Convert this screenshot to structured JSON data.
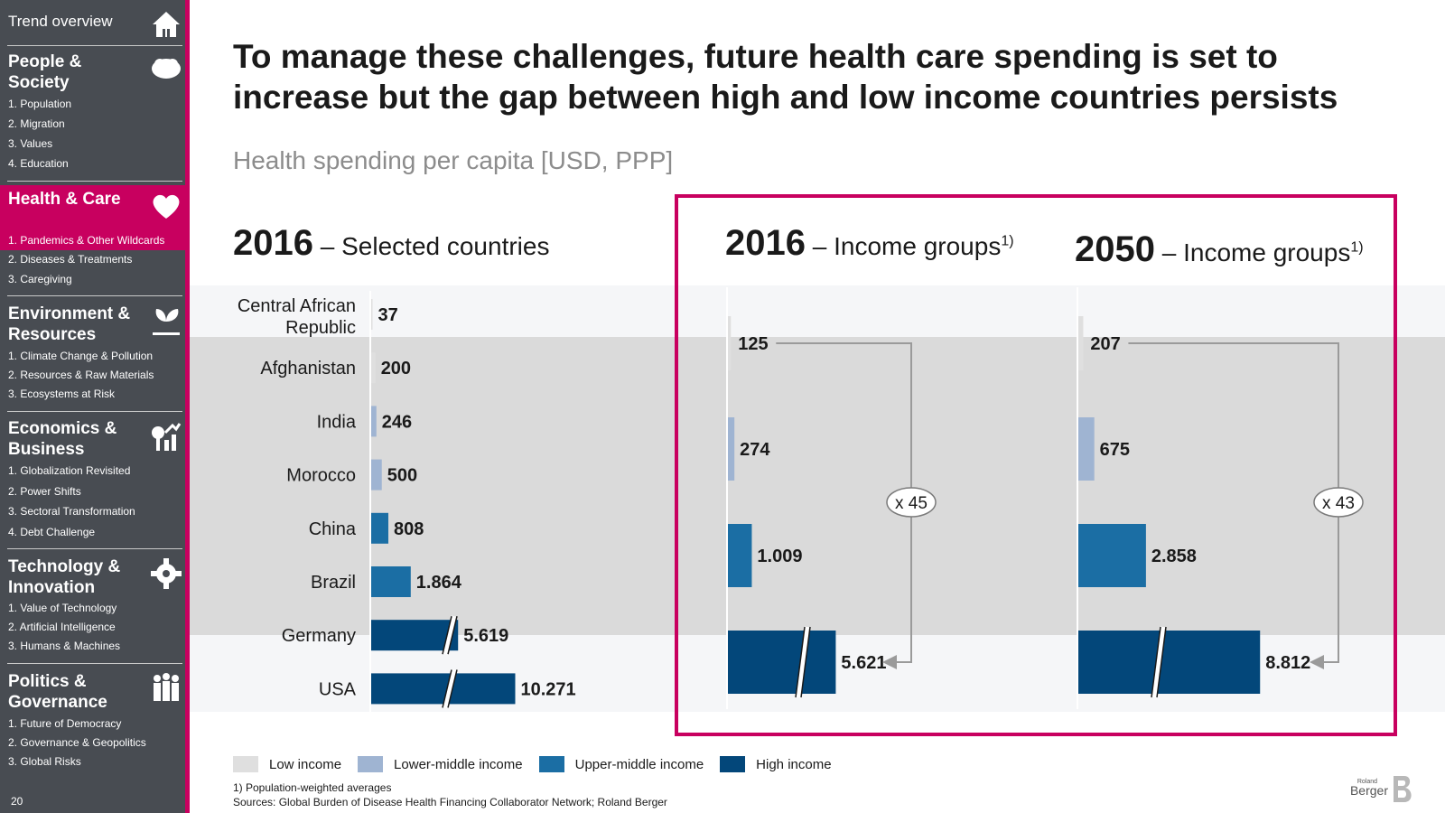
{
  "sidebar": {
    "top_label": "Trend overview",
    "page_number": "20",
    "sections": [
      {
        "title": "People & Society",
        "items": [
          "1. Population",
          "2. Migration",
          "3. Values",
          "4. Education"
        ],
        "active": false
      },
      {
        "title": "Health & Care",
        "items": [
          "1. Pandemics & Other Wildcards",
          "2. Diseases & Treatments",
          "3. Caregiving"
        ],
        "active": true
      },
      {
        "title": "Environment & Resources",
        "items": [
          "1. Climate Change & Pollution",
          "2. Resources & Raw Materials",
          "3. Ecosystems at Risk"
        ],
        "active": false
      },
      {
        "title": "Economics & Business",
        "items": [
          "1. Globalization Revisited",
          "2. Power Shifts",
          "3. Sectoral Transformation",
          "4. Debt Challenge"
        ],
        "active": false
      },
      {
        "title": "Technology & Innovation",
        "items": [
          "1. Value of Technology",
          "2. Artificial Intelligence",
          "3. Humans & Machines"
        ],
        "active": false
      },
      {
        "title": "Politics & Governance",
        "items": [
          "1. Future of Democracy",
          "2. Governance & Geopolitics",
          "3. Global Risks"
        ],
        "active": false
      }
    ],
    "icons": [
      "home-icon",
      "people-icon",
      "heart-icon",
      "leaf-icon",
      "business-icon",
      "gear-icon",
      "politics-icon"
    ]
  },
  "headline": "To manage these challenges, future health care spending is set to increase but the gap between high and low income countries persists",
  "subtitle": "Health spending per capita [USD, PPP]",
  "panels": [
    {
      "year": "2016",
      "label": "– Selected countries",
      "footnote_mark": ""
    },
    {
      "year": "2016",
      "label": "– Income groups",
      "footnote_mark": "1)"
    },
    {
      "year": "2050",
      "label": "– Income groups",
      "footnote_mark": "1)"
    }
  ],
  "colors": {
    "low": "#dfdfdf",
    "lower_middle": "#9fb4d2",
    "upper_middle": "#1b6ea4",
    "high": "#03477a",
    "accent": "#c8005f"
  },
  "chart_data": [
    {
      "type": "bar",
      "title": "2016 – Selected countries",
      "categories": [
        "Central African Republic",
        "Afghanistan",
        "India",
        "Morocco",
        "China",
        "Brazil",
        "Germany",
        "USA"
      ],
      "values": [
        37,
        200,
        246,
        500,
        808,
        1864,
        5619,
        10271
      ],
      "value_labels": [
        "37",
        "200",
        "246",
        "500",
        "808",
        "1.864",
        "5.619",
        "10.271"
      ],
      "income_group": [
        "low",
        "low",
        "lower_middle",
        "lower_middle",
        "upper_middle",
        "upper_middle",
        "high",
        "high"
      ],
      "axis_break": [
        false,
        false,
        false,
        false,
        false,
        false,
        true,
        true
      ]
    },
    {
      "type": "bar",
      "title": "2016 – Income groups",
      "categories": [
        "Low income",
        "Lower-middle income",
        "Upper-middle income",
        "High income"
      ],
      "values": [
        125,
        274,
        1009,
        5621
      ],
      "value_labels": [
        "125",
        "274",
        "1.009",
        "5.621"
      ],
      "axis_break": [
        false,
        false,
        false,
        true
      ],
      "multiplier_label": "x 45"
    },
    {
      "type": "bar",
      "title": "2050 – Income groups",
      "categories": [
        "Low income",
        "Lower-middle income",
        "Upper-middle income",
        "High income"
      ],
      "values": [
        207,
        675,
        2858,
        8812
      ],
      "value_labels": [
        "207",
        "675",
        "2.858",
        "8.812"
      ],
      "axis_break": [
        false,
        false,
        false,
        true
      ],
      "multiplier_label": "x 43"
    }
  ],
  "legend": [
    {
      "key": "low",
      "label": "Low income"
    },
    {
      "key": "lower_middle",
      "label": "Lower-middle income"
    },
    {
      "key": "upper_middle",
      "label": "Upper-middle income"
    },
    {
      "key": "high",
      "label": "High income"
    }
  ],
  "footnotes": {
    "note": "1) Population-weighted averages",
    "sources": "Sources: Global Burden of Disease Health Financing Collaborator Network; Roland Berger"
  },
  "logo": {
    "small": "Roland",
    "big": "Berger"
  }
}
